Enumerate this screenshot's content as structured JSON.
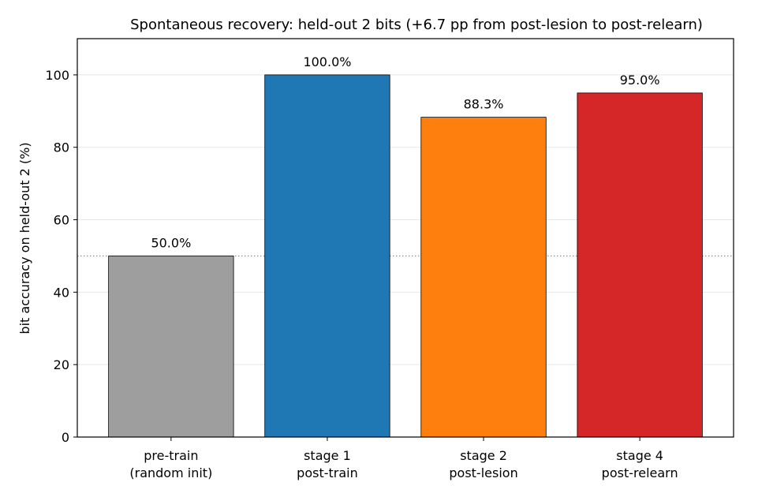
{
  "chart_data": {
    "type": "bar",
    "title": "Spontaneous recovery: held-out 2 bits  (+6.7 pp from post-lesion to post-relearn)",
    "xlabel": "",
    "ylabel": "bit accuracy on held-out 2 (%)",
    "ylim": [
      0,
      110
    ],
    "yticks": [
      0,
      20,
      40,
      60,
      80,
      100
    ],
    "grid": "horizontal",
    "reference_line": 50,
    "categories": [
      [
        "pre-train",
        "(random init)"
      ],
      [
        "stage 1",
        "post-train"
      ],
      [
        "stage 2",
        "post-lesion"
      ],
      [
        "stage 4",
        "post-relearn"
      ]
    ],
    "values": [
      50.0,
      100.0,
      88.3,
      95.0
    ],
    "data_labels": [
      "50.0%",
      "100.0%",
      "88.3%",
      "95.0%"
    ],
    "colors": [
      "#9e9e9e",
      "#1f77b4",
      "#ff7f0e",
      "#d62728"
    ]
  }
}
